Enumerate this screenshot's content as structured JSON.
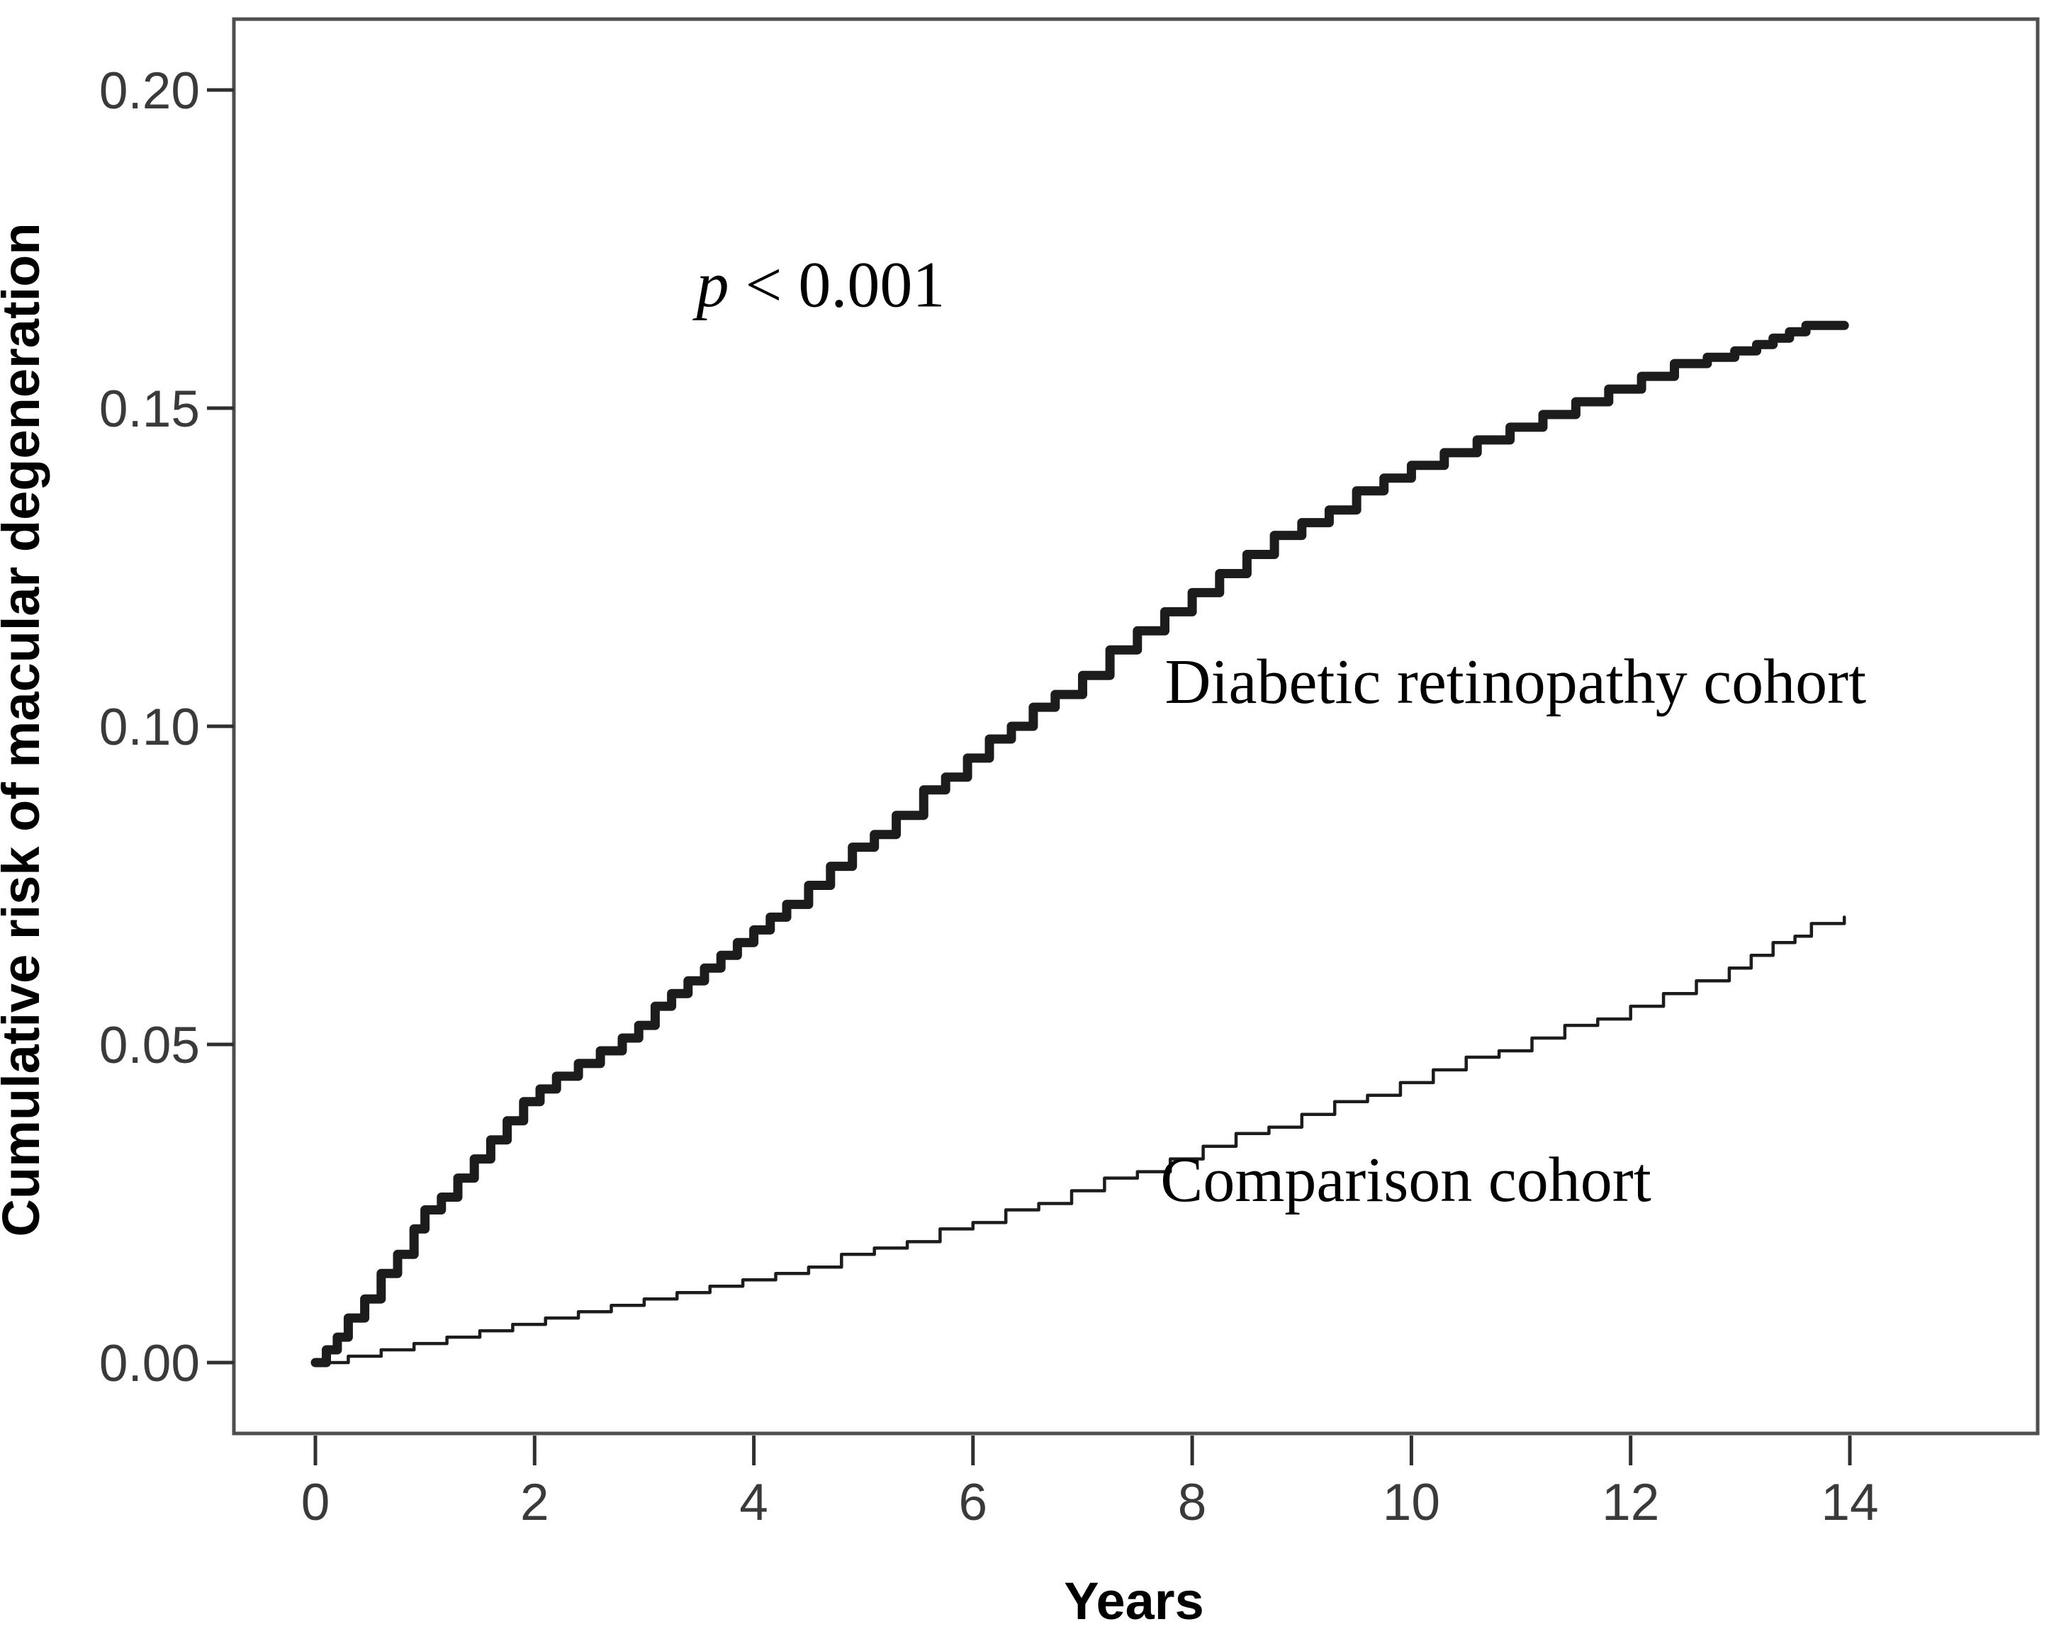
{
  "figure": {
    "background": "#ffffff",
    "frame_color": "#4f4f4f",
    "tick_color": "#2f2f2f",
    "tick_label_color": "#3a3a3a",
    "axis_title_color": "#000000",
    "annotation_color": "#000000",
    "curve_color": "#1c1c1c"
  },
  "chart_data": {
    "type": "line",
    "subtype": "kaplan-meier-step",
    "title": "",
    "xlabel": "Years",
    "ylabel": "Cumulative risk of macular degeneration",
    "xlim": [
      -0.75,
      15.72
    ],
    "ylim": [
      -0.0112,
      0.2112
    ],
    "x_ticks": [
      0,
      2,
      4,
      6,
      8,
      10,
      12,
      14
    ],
    "y_ticks": [
      0.0,
      0.05,
      0.1,
      0.15,
      0.2
    ],
    "y_tick_labels": [
      "0.00",
      "0.05",
      "0.10",
      "0.15",
      "0.20"
    ],
    "grid": false,
    "legend_position": "inline-annotations",
    "annotations": [
      {
        "id": "p-value-annotation",
        "text_italic": "p",
        "text_rest": " < 0.001",
        "x": 4.61,
        "y": 0.166,
        "anchor": "middle",
        "font_size": 92
      },
      {
        "id": "label-diabetic-retinopathy-cohort",
        "text": "Diabetic retinopathy cohort",
        "x": 7.75,
        "y": 0.1037,
        "anchor": "start",
        "font_size": 90
      },
      {
        "id": "label-comparison-cohort",
        "text": "Comparison cohort",
        "x": 7.71,
        "y": 0.0254,
        "anchor": "start",
        "font_size": 90
      }
    ],
    "series": [
      {
        "name": "Diabetic retinopathy cohort",
        "stroke_width": 13,
        "points": [
          [
            0,
            0
          ],
          [
            0.1,
            0.002
          ],
          [
            0.2,
            0.004
          ],
          [
            0.3,
            0.007
          ],
          [
            0.45,
            0.01
          ],
          [
            0.6,
            0.014
          ],
          [
            0.75,
            0.017
          ],
          [
            0.9,
            0.021
          ],
          [
            1.0,
            0.024
          ],
          [
            1.15,
            0.026
          ],
          [
            1.3,
            0.029
          ],
          [
            1.45,
            0.032
          ],
          [
            1.6,
            0.035
          ],
          [
            1.75,
            0.038
          ],
          [
            1.9,
            0.041
          ],
          [
            2.05,
            0.043
          ],
          [
            2.2,
            0.045
          ],
          [
            2.4,
            0.047
          ],
          [
            2.6,
            0.049
          ],
          [
            2.8,
            0.051
          ],
          [
            2.95,
            0.053
          ],
          [
            3.1,
            0.056
          ],
          [
            3.25,
            0.058
          ],
          [
            3.4,
            0.06
          ],
          [
            3.55,
            0.062
          ],
          [
            3.7,
            0.064
          ],
          [
            3.85,
            0.066
          ],
          [
            4.0,
            0.068
          ],
          [
            4.15,
            0.07
          ],
          [
            4.3,
            0.072
          ],
          [
            4.5,
            0.075
          ],
          [
            4.7,
            0.078
          ],
          [
            4.9,
            0.081
          ],
          [
            5.1,
            0.083
          ],
          [
            5.3,
            0.086
          ],
          [
            5.55,
            0.09
          ],
          [
            5.75,
            0.092
          ],
          [
            5.95,
            0.095
          ],
          [
            6.15,
            0.098
          ],
          [
            6.35,
            0.1
          ],
          [
            6.55,
            0.103
          ],
          [
            6.75,
            0.105
          ],
          [
            7.0,
            0.108
          ],
          [
            7.25,
            0.112
          ],
          [
            7.5,
            0.115
          ],
          [
            7.75,
            0.118
          ],
          [
            8.0,
            0.121
          ],
          [
            8.25,
            0.124
          ],
          [
            8.5,
            0.127
          ],
          [
            8.75,
            0.13
          ],
          [
            9.0,
            0.132
          ],
          [
            9.25,
            0.134
          ],
          [
            9.5,
            0.137
          ],
          [
            9.75,
            0.139
          ],
          [
            10.0,
            0.141
          ],
          [
            10.3,
            0.143
          ],
          [
            10.6,
            0.145
          ],
          [
            10.9,
            0.147
          ],
          [
            11.2,
            0.149
          ],
          [
            11.5,
            0.151
          ],
          [
            11.8,
            0.153
          ],
          [
            12.1,
            0.155
          ],
          [
            12.4,
            0.157
          ],
          [
            12.7,
            0.158
          ],
          [
            12.95,
            0.159
          ],
          [
            13.15,
            0.16
          ],
          [
            13.3,
            0.161
          ],
          [
            13.45,
            0.162
          ],
          [
            13.6,
            0.163
          ],
          [
            13.95,
            0.163
          ]
        ]
      },
      {
        "name": "Comparison cohort",
        "stroke_width": 4.5,
        "points": [
          [
            0,
            0
          ],
          [
            0.3,
            0.001
          ],
          [
            0.6,
            0.002
          ],
          [
            0.9,
            0.003
          ],
          [
            1.2,
            0.004
          ],
          [
            1.5,
            0.005
          ],
          [
            1.8,
            0.006
          ],
          [
            2.1,
            0.007
          ],
          [
            2.4,
            0.008
          ],
          [
            2.7,
            0.009
          ],
          [
            3.0,
            0.01
          ],
          [
            3.3,
            0.011
          ],
          [
            3.6,
            0.012
          ],
          [
            3.9,
            0.013
          ],
          [
            4.2,
            0.014
          ],
          [
            4.5,
            0.015
          ],
          [
            4.8,
            0.017
          ],
          [
            5.1,
            0.018
          ],
          [
            5.4,
            0.019
          ],
          [
            5.7,
            0.021
          ],
          [
            6.0,
            0.022
          ],
          [
            6.3,
            0.024
          ],
          [
            6.6,
            0.025
          ],
          [
            6.9,
            0.027
          ],
          [
            7.2,
            0.029
          ],
          [
            7.5,
            0.03
          ],
          [
            7.8,
            0.032
          ],
          [
            8.1,
            0.034
          ],
          [
            8.4,
            0.036
          ],
          [
            8.7,
            0.037
          ],
          [
            9.0,
            0.039
          ],
          [
            9.3,
            0.041
          ],
          [
            9.6,
            0.042
          ],
          [
            9.9,
            0.044
          ],
          [
            10.2,
            0.046
          ],
          [
            10.5,
            0.048
          ],
          [
            10.8,
            0.049
          ],
          [
            11.1,
            0.051
          ],
          [
            11.4,
            0.053
          ],
          [
            11.7,
            0.054
          ],
          [
            12.0,
            0.056
          ],
          [
            12.3,
            0.058
          ],
          [
            12.6,
            0.06
          ],
          [
            12.9,
            0.062
          ],
          [
            13.1,
            0.064
          ],
          [
            13.3,
            0.066
          ],
          [
            13.5,
            0.067
          ],
          [
            13.65,
            0.069
          ],
          [
            13.95,
            0.07
          ]
        ]
      }
    ]
  }
}
